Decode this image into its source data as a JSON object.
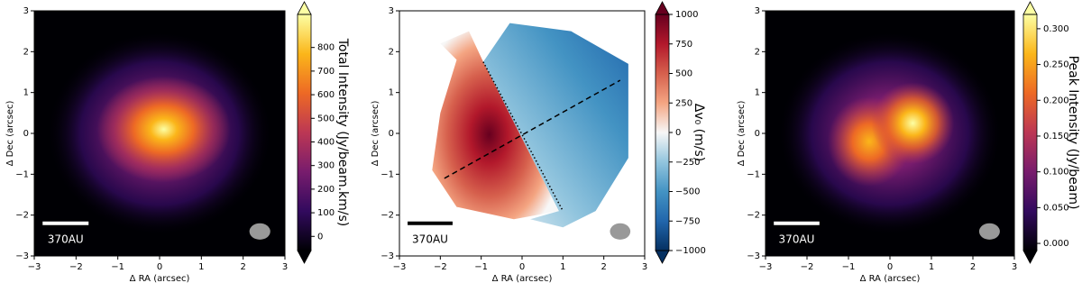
{
  "chart_data": [
    {
      "type": "image",
      "colormap": "inferno",
      "xlabel": "Δ RA (arcsec)",
      "ylabel": "Δ Dec (arcsec)",
      "xlim": [
        -3,
        3
      ],
      "ylim": [
        -3,
        3
      ],
      "xticks": [
        {
          "value": -3,
          "label": "−3"
        },
        {
          "value": -2,
          "label": "−2"
        },
        {
          "value": -1,
          "label": "−1"
        },
        0,
        1,
        2,
        3
      ],
      "yticks": [
        {
          "value": -3,
          "label": "−3"
        },
        {
          "value": -2,
          "label": "−2"
        },
        {
          "value": -1,
          "label": "−1"
        },
        0,
        1,
        2,
        3
      ],
      "scalebar": "370AU",
      "colorbar_label": "Total Intensity (Jy/beam.km/s)",
      "clim": [
        -60,
        940
      ],
      "cticks": [
        0,
        100,
        200,
        300,
        400,
        500,
        600,
        700,
        800
      ]
    },
    {
      "type": "image",
      "colormap": "RdBu_r",
      "xlabel": "Δ RA (arcsec)",
      "ylabel": "Δ Dec (arcsec)",
      "xlim": [
        -3,
        3
      ],
      "ylim": [
        -3,
        3
      ],
      "xticks": [
        {
          "value": -3,
          "label": "−3"
        },
        {
          "value": -2,
          "label": "−2"
        },
        {
          "value": -1,
          "label": "−1"
        },
        0,
        1,
        2,
        3
      ],
      "yticks": [
        {
          "value": -3,
          "label": "−3"
        },
        {
          "value": -2,
          "label": "−2"
        },
        {
          "value": -1,
          "label": "−1"
        },
        0,
        1,
        2,
        3
      ],
      "scalebar": "370AU",
      "colorbar_label": "Δv₀ (m/s)",
      "clim": [
        -1000,
        1000
      ],
      "cticks": [
        {
          "value": -1000,
          "label": "−1000"
        },
        {
          "value": -750,
          "label": "−750"
        },
        {
          "value": -500,
          "label": "−500"
        },
        {
          "value": -250,
          "label": "−250"
        },
        0,
        250,
        500,
        750,
        1000
      ]
    },
    {
      "type": "image",
      "colormap": "inferno",
      "xlabel": "Δ RA (arcsec)",
      "ylabel": "Δ Dec (arcsec)",
      "xlim": [
        -3,
        3
      ],
      "ylim": [
        -3,
        3
      ],
      "xticks": [
        {
          "value": -3,
          "label": "−3"
        },
        {
          "value": -2,
          "label": "−2"
        },
        {
          "value": -1,
          "label": "−1"
        },
        0,
        1,
        2,
        3
      ],
      "yticks": [
        {
          "value": -3,
          "label": "−3"
        },
        {
          "value": -2,
          "label": "−2"
        },
        {
          "value": -1,
          "label": "−1"
        },
        0,
        1,
        2,
        3
      ],
      "scalebar": "370AU",
      "colorbar_label": "Peak Intensity (Jy/beam)",
      "clim": [
        -0.01,
        0.32
      ],
      "cticks": [
        {
          "value": 0,
          "label": "0.000"
        },
        {
          "value": 0.05,
          "label": "0.050"
        },
        {
          "value": 0.1,
          "label": "0.100"
        },
        {
          "value": 0.15,
          "label": "0.150"
        },
        {
          "value": 0.2,
          "label": "0.200"
        },
        {
          "value": 0.25,
          "label": "0.250"
        },
        {
          "value": 0.3,
          "label": "0.300"
        }
      ]
    }
  ]
}
